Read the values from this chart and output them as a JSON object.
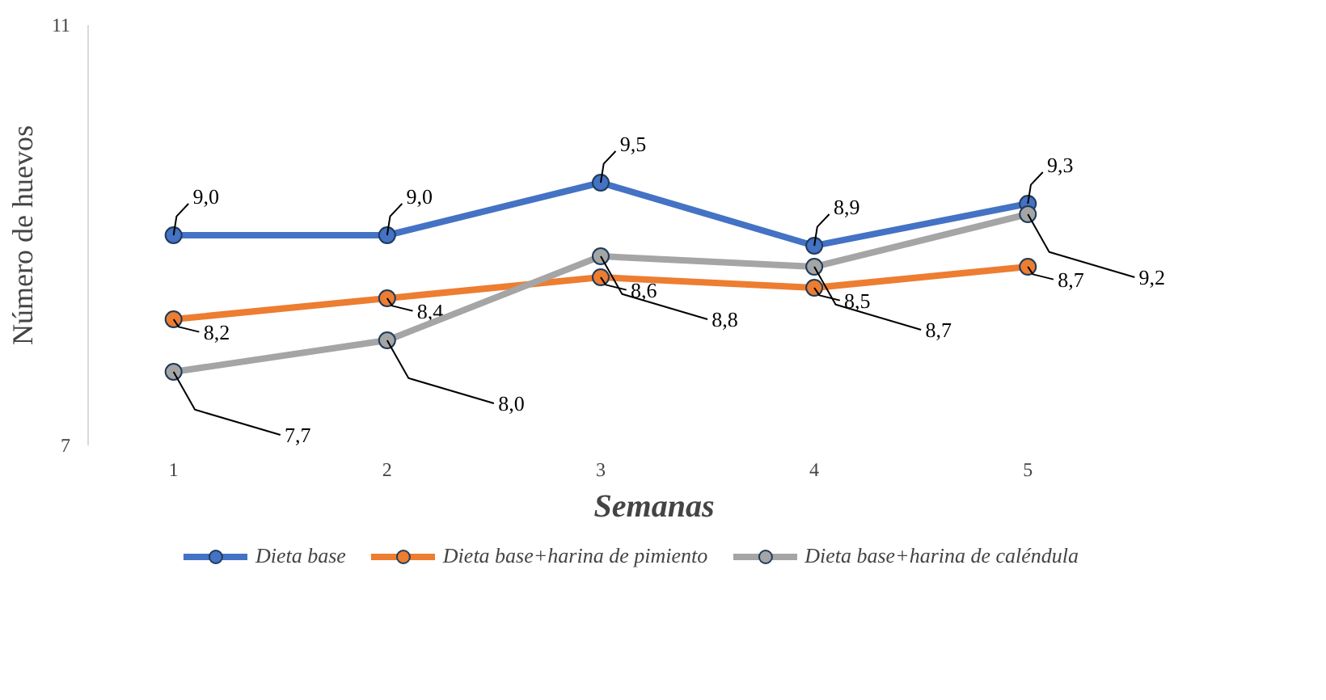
{
  "chart_data": {
    "type": "line",
    "xlabel": "Semanas",
    "ylabel": "Número de huevos",
    "categories": [
      "1",
      "2",
      "3",
      "4",
      "5"
    ],
    "ylim": [
      7,
      11
    ],
    "yticks": [
      7,
      11
    ],
    "grid": false,
    "legend": "bottom",
    "marker": "circle",
    "line_style": "solid",
    "series": [
      {
        "name": "Dieta base",
        "color": "#4472c4",
        "values": [
          9.0,
          9.0,
          9.5,
          8.9,
          9.3
        ],
        "value_labels": [
          "9,0",
          "9,0",
          "9,5",
          "8,9",
          "9,3"
        ]
      },
      {
        "name": "Dieta base+harina de pimiento",
        "color": "#ed7d31",
        "values": [
          8.2,
          8.4,
          8.6,
          8.5,
          8.7
        ],
        "value_labels": [
          "8,2",
          "8,4",
          "8,6",
          "8,5",
          "8,7"
        ]
      },
      {
        "name": "Dieta base+harina de caléndula",
        "color": "#a5a5a5",
        "values": [
          7.7,
          8.0,
          8.8,
          8.7,
          9.2
        ],
        "value_labels": [
          "7,7",
          "8,0",
          "8,8",
          "8,7",
          "9,2"
        ]
      }
    ]
  }
}
